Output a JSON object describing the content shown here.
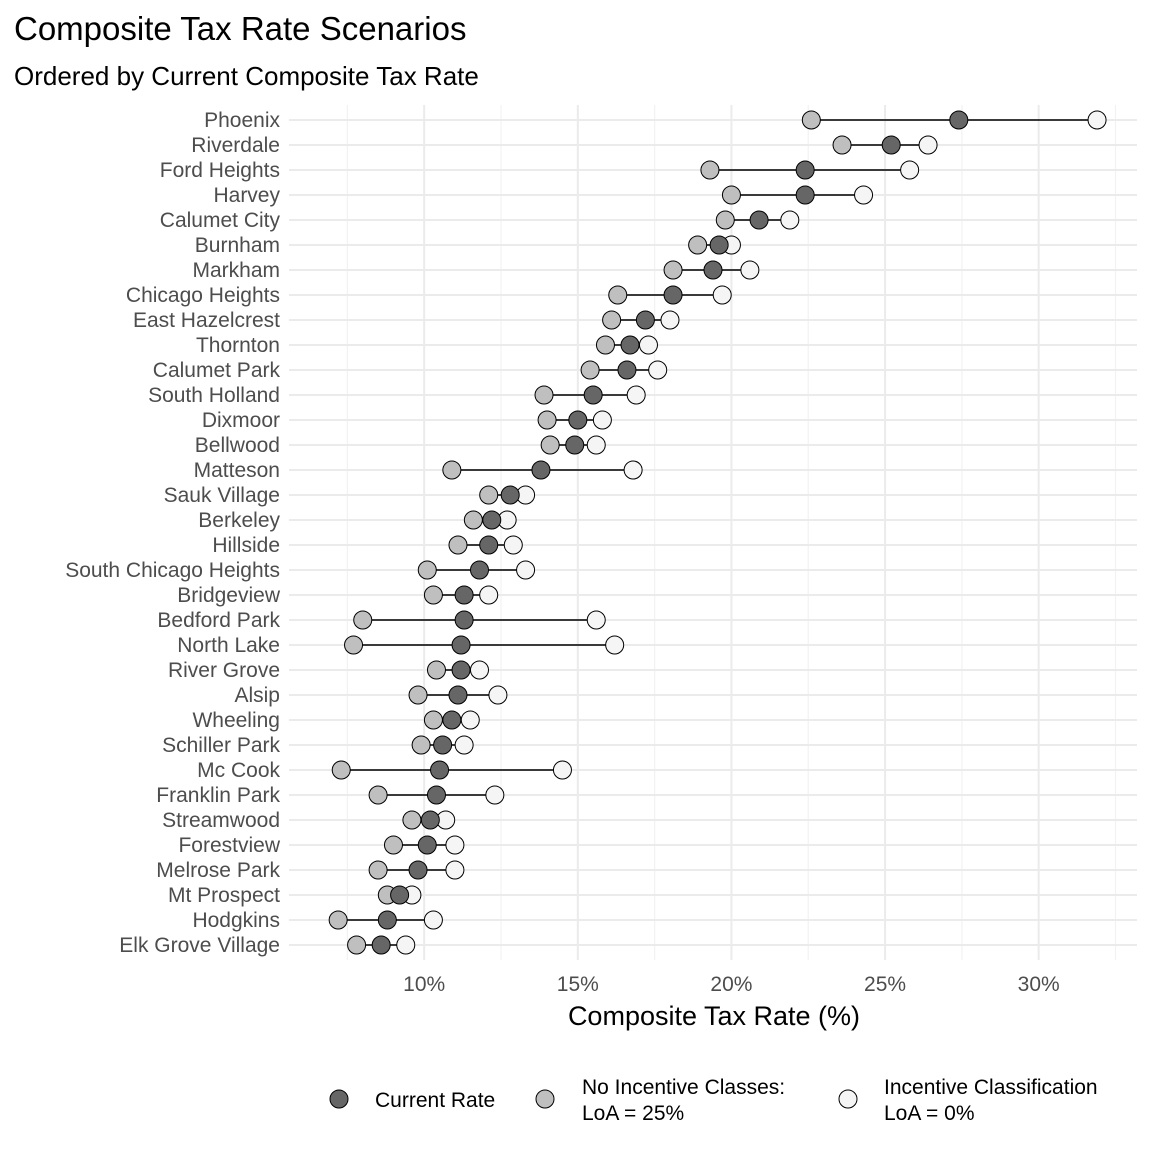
{
  "chart_data": {
    "type": "dumbbell",
    "title": "Composite Tax Rate Scenarios",
    "subtitle": "Ordered by Current Composite Tax Rate",
    "xlabel": "Composite Tax Rate (%)",
    "ylabel": "",
    "xlim": [
      5.6,
      33.2
    ],
    "x_ticks": [
      10,
      15,
      20,
      25,
      30
    ],
    "x_tick_labels": [
      "10%",
      "15%",
      "20%",
      "25%",
      "30%"
    ],
    "grid": true,
    "legend_position": "bottom",
    "series": [
      {
        "key": "current",
        "name": "Current Rate",
        "color": "#666666"
      },
      {
        "key": "no_incentive",
        "name": "No Incentive Classes:\nLoA = 25%",
        "color": "#bfbfbf"
      },
      {
        "key": "incentive",
        "name": "Incentive Classification\nLoA = 0%",
        "color": "#f5f5f5"
      }
    ],
    "municipalities": [
      {
        "name": "Phoenix",
        "current": 27.4,
        "no_incentive": 22.6,
        "incentive": 31.9
      },
      {
        "name": "Riverdale",
        "current": 25.2,
        "no_incentive": 23.6,
        "incentive": 26.4
      },
      {
        "name": "Ford Heights",
        "current": 22.4,
        "no_incentive": 19.3,
        "incentive": 25.8
      },
      {
        "name": "Harvey",
        "current": 22.4,
        "no_incentive": 20.0,
        "incentive": 24.3
      },
      {
        "name": "Calumet City",
        "current": 20.9,
        "no_incentive": 19.8,
        "incentive": 21.9
      },
      {
        "name": "Burnham",
        "current": 19.6,
        "no_incentive": 18.9,
        "incentive": 20.0
      },
      {
        "name": "Markham",
        "current": 19.4,
        "no_incentive": 18.1,
        "incentive": 20.6
      },
      {
        "name": "Chicago Heights",
        "current": 18.1,
        "no_incentive": 16.3,
        "incentive": 19.7
      },
      {
        "name": "East Hazelcrest",
        "current": 17.2,
        "no_incentive": 16.1,
        "incentive": 18.0
      },
      {
        "name": "Thornton",
        "current": 16.7,
        "no_incentive": 15.9,
        "incentive": 17.3
      },
      {
        "name": "Calumet Park",
        "current": 16.6,
        "no_incentive": 15.4,
        "incentive": 17.6
      },
      {
        "name": "South Holland",
        "current": 15.5,
        "no_incentive": 13.9,
        "incentive": 16.9
      },
      {
        "name": "Dixmoor",
        "current": 15.0,
        "no_incentive": 14.0,
        "incentive": 15.8
      },
      {
        "name": "Bellwood",
        "current": 14.9,
        "no_incentive": 14.1,
        "incentive": 15.6
      },
      {
        "name": "Matteson",
        "current": 13.8,
        "no_incentive": 10.9,
        "incentive": 16.8
      },
      {
        "name": "Sauk Village",
        "current": 12.8,
        "no_incentive": 12.1,
        "incentive": 13.3
      },
      {
        "name": "Berkeley",
        "current": 12.2,
        "no_incentive": 11.6,
        "incentive": 12.7
      },
      {
        "name": "Hillside",
        "current": 12.1,
        "no_incentive": 11.1,
        "incentive": 12.9
      },
      {
        "name": "South Chicago Heights",
        "current": 11.8,
        "no_incentive": 10.1,
        "incentive": 13.3
      },
      {
        "name": "Bridgeview",
        "current": 11.3,
        "no_incentive": 10.3,
        "incentive": 12.1
      },
      {
        "name": "Bedford Park",
        "current": 11.3,
        "no_incentive": 8.0,
        "incentive": 15.6
      },
      {
        "name": "North Lake",
        "current": 11.2,
        "no_incentive": 7.7,
        "incentive": 16.2
      },
      {
        "name": "River Grove",
        "current": 11.2,
        "no_incentive": 10.4,
        "incentive": 11.8
      },
      {
        "name": "Alsip",
        "current": 11.1,
        "no_incentive": 9.8,
        "incentive": 12.4
      },
      {
        "name": "Wheeling",
        "current": 10.9,
        "no_incentive": 10.3,
        "incentive": 11.5
      },
      {
        "name": "Schiller Park",
        "current": 10.6,
        "no_incentive": 9.9,
        "incentive": 11.3
      },
      {
        "name": "Mc Cook",
        "current": 10.5,
        "no_incentive": 7.3,
        "incentive": 14.5
      },
      {
        "name": "Franklin Park",
        "current": 10.4,
        "no_incentive": 8.5,
        "incentive": 12.3
      },
      {
        "name": "Streamwood",
        "current": 10.2,
        "no_incentive": 9.6,
        "incentive": 10.7
      },
      {
        "name": "Forestview",
        "current": 10.1,
        "no_incentive": 9.0,
        "incentive": 11.0
      },
      {
        "name": "Melrose Park",
        "current": 9.8,
        "no_incentive": 8.5,
        "incentive": 11.0
      },
      {
        "name": "Mt Prospect",
        "current": 9.2,
        "no_incentive": 8.8,
        "incentive": 9.6
      },
      {
        "name": "Hodgkins",
        "current": 8.8,
        "no_incentive": 7.2,
        "incentive": 10.3
      },
      {
        "name": "Elk Grove Village",
        "current": 8.6,
        "no_incentive": 7.8,
        "incentive": 9.4
      }
    ]
  }
}
